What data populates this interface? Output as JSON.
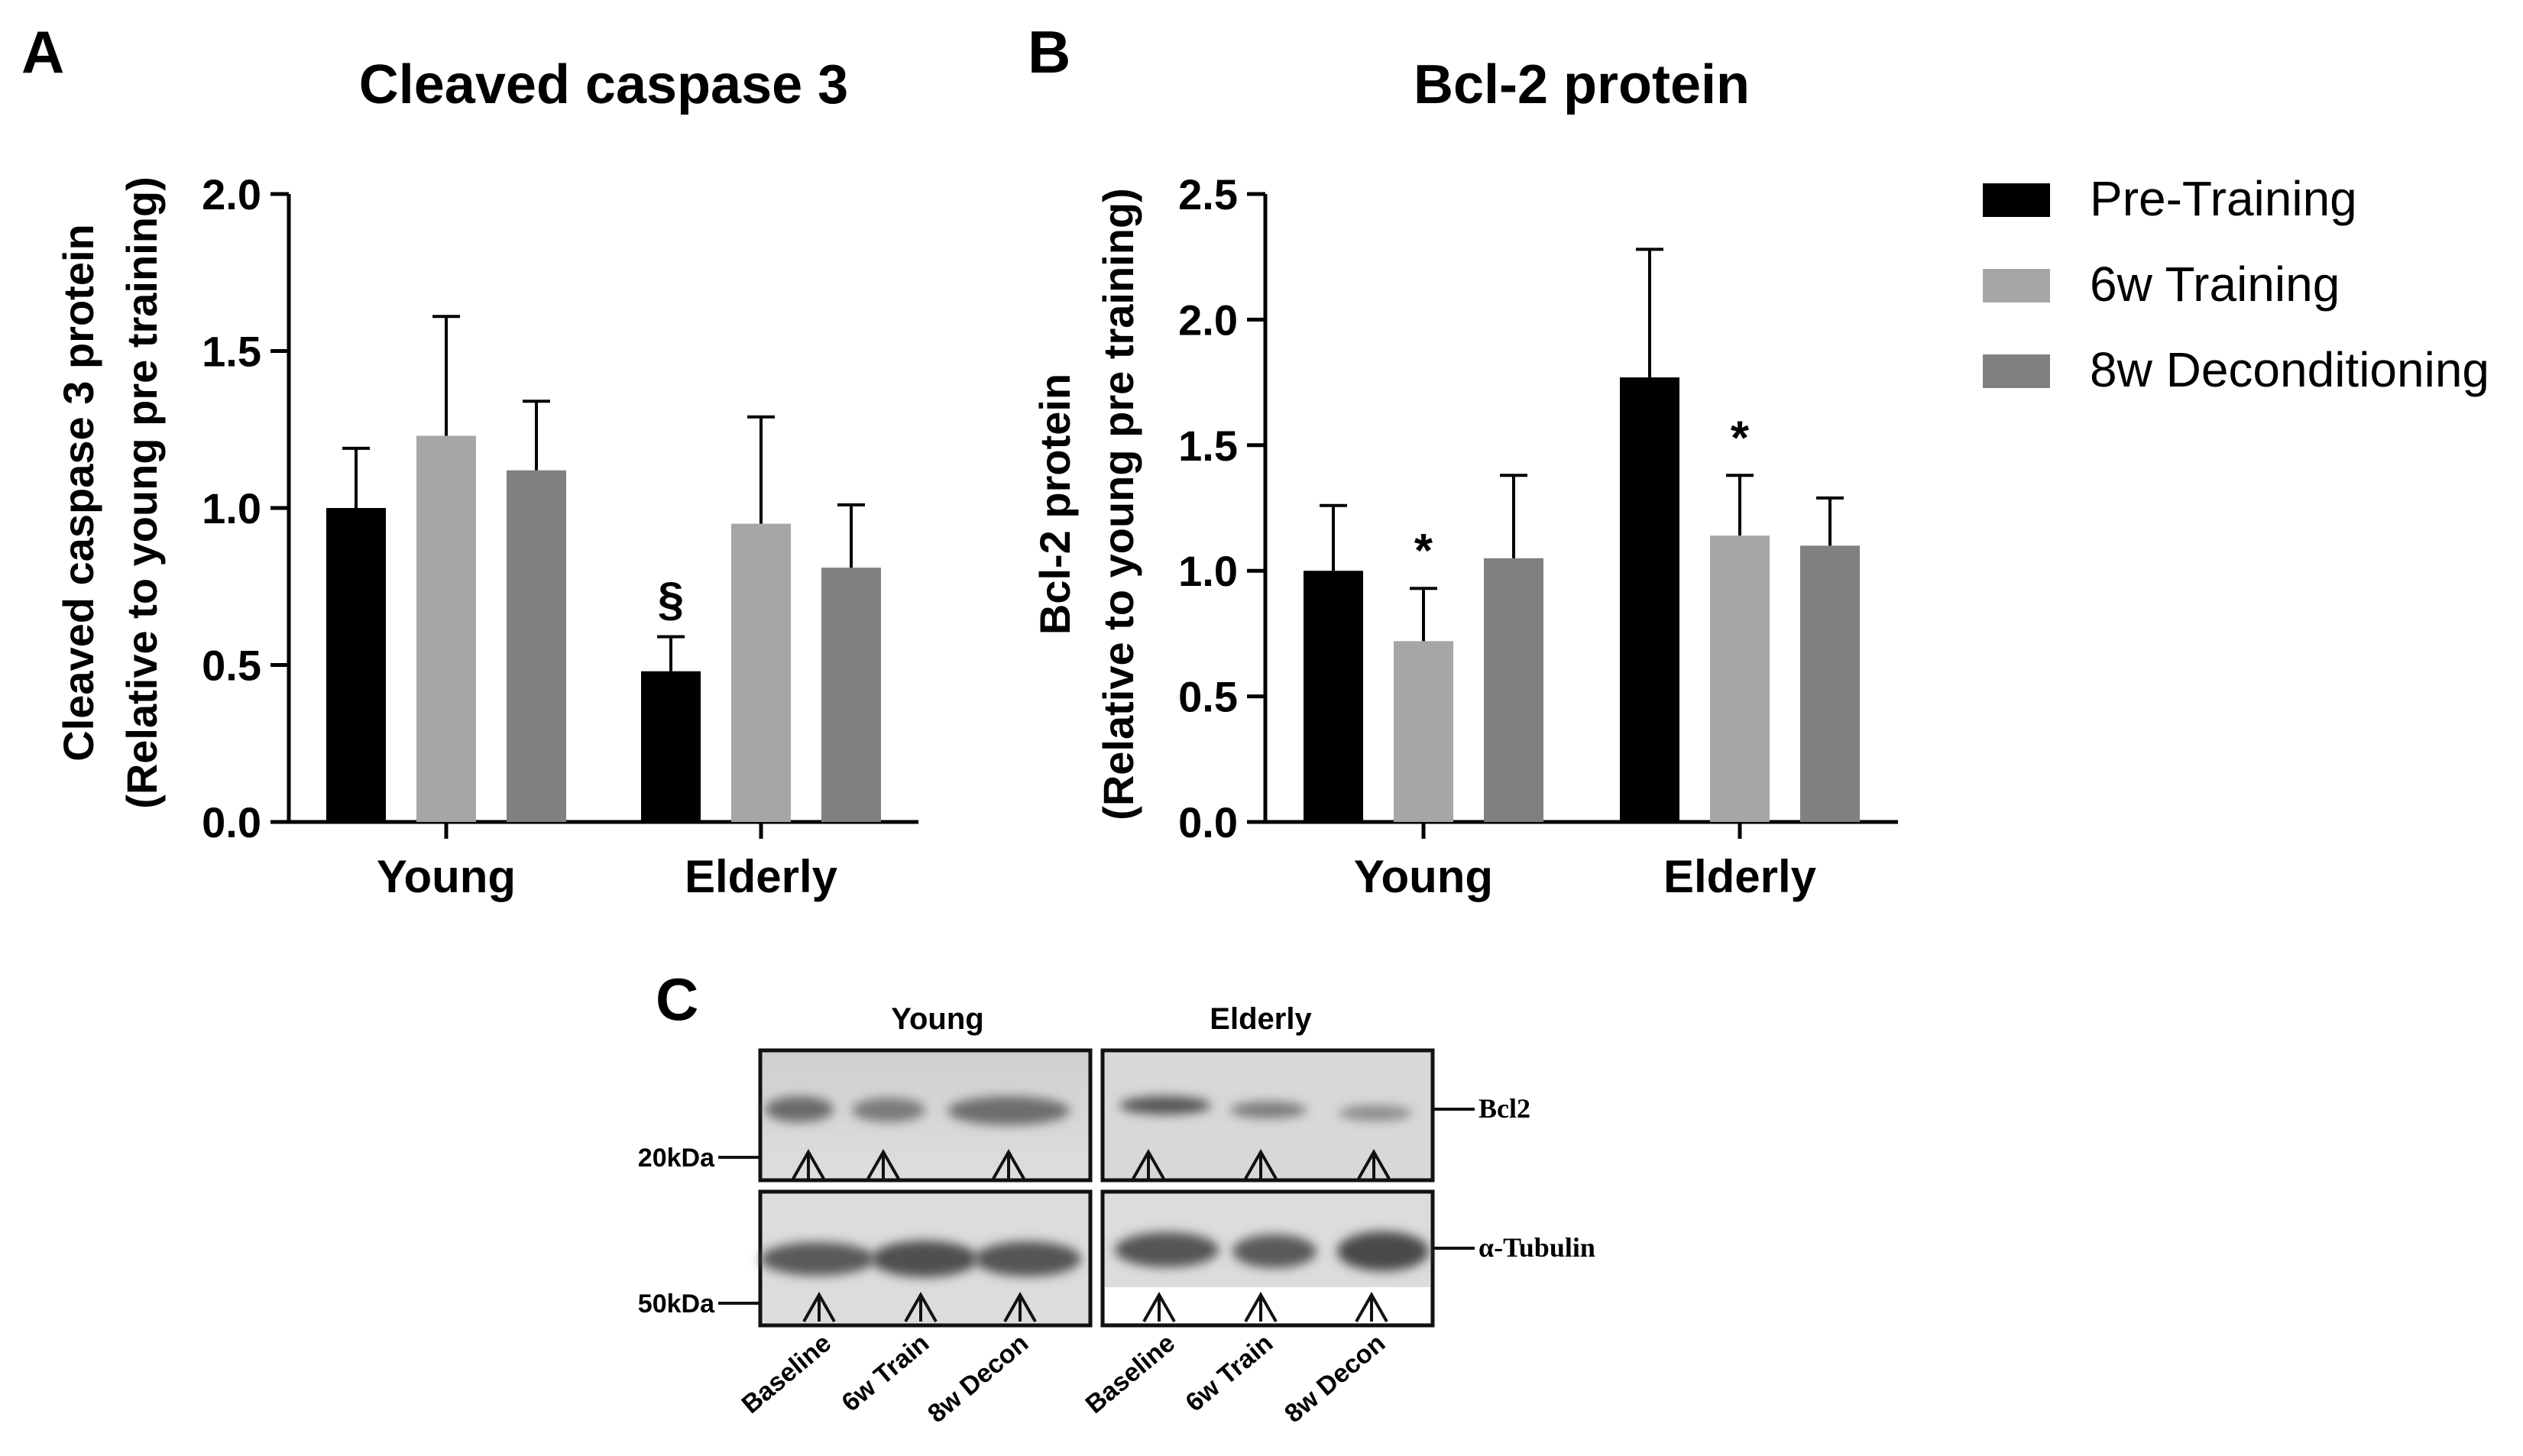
{
  "panels": {
    "A": {
      "letter": "A"
    },
    "B": {
      "letter": "B"
    },
    "C": {
      "letter": "C"
    }
  },
  "legend": {
    "items": [
      {
        "label": "Pre-Training",
        "color": "#000000"
      },
      {
        "label": "6w Training",
        "color": "#a6a6a6"
      },
      {
        "label": "8w Deconditioning",
        "color": "#808080"
      }
    ]
  },
  "chart_data": [
    {
      "panel": "A",
      "type": "bar",
      "title": "Cleaved caspase 3",
      "ylabel_lines": [
        "Cleaved caspase 3 protein",
        "(Relative to young pre training)"
      ],
      "categories": [
        "Young",
        "Elderly"
      ],
      "ylim": [
        0,
        2.0
      ],
      "yticks": [
        "0.0",
        "0.5",
        "1.0",
        "1.5",
        "2.0"
      ],
      "series": [
        {
          "name": "Pre-Training",
          "color": "#000000",
          "values": [
            1.0,
            0.48
          ],
          "errors": [
            0.19,
            0.11
          ],
          "marks": [
            "",
            "§"
          ]
        },
        {
          "name": "6w Training",
          "color": "#a6a6a6",
          "values": [
            1.23,
            0.95
          ],
          "errors": [
            0.38,
            0.34
          ],
          "marks": [
            "",
            ""
          ]
        },
        {
          "name": "8w Deconditioning",
          "color": "#808080",
          "values": [
            1.12,
            0.81
          ],
          "errors": [
            0.22,
            0.2
          ],
          "marks": [
            "",
            ""
          ]
        }
      ]
    },
    {
      "panel": "B",
      "type": "bar",
      "title": "Bcl-2 protein",
      "ylabel_lines": [
        "Bcl-2 protein",
        "(Relative to young pre training)"
      ],
      "categories": [
        "Young",
        "Elderly"
      ],
      "ylim": [
        0,
        2.5
      ],
      "yticks": [
        "0.0",
        "0.5",
        "1.0",
        "1.5",
        "2.0",
        "2.5"
      ],
      "series": [
        {
          "name": "Pre-Training",
          "color": "#000000",
          "values": [
            1.0,
            1.77
          ],
          "errors": [
            0.26,
            0.51
          ],
          "marks": [
            "",
            ""
          ]
        },
        {
          "name": "6w Training",
          "color": "#a6a6a6",
          "values": [
            0.72,
            1.14
          ],
          "errors": [
            0.21,
            0.24
          ],
          "marks": [
            "*",
            "*"
          ]
        },
        {
          "name": "8w Deconditioning",
          "color": "#808080",
          "values": [
            1.05,
            1.1
          ],
          "errors": [
            0.33,
            0.19
          ],
          "marks": [
            "",
            ""
          ]
        }
      ]
    }
  ],
  "blot": {
    "group_labels": [
      "Young",
      "Elderly"
    ],
    "markers": [
      "20kDa",
      "50kDa"
    ],
    "band_labels": [
      "Bcl2",
      "α-Tubulin"
    ],
    "lane_labels": [
      "Baseline",
      "6w Train",
      "8w Decon",
      "Baseline",
      "6w Train",
      "8w Decon"
    ]
  }
}
